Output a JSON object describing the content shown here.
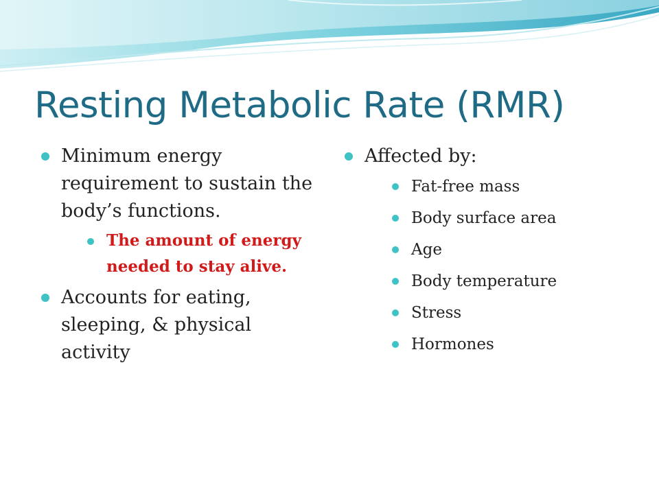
{
  "slide": {
    "title": "Resting Metabolic Rate (RMR)",
    "accent_color": "#3ec2c6",
    "title_color": "#1f6b86",
    "emphasis_color": "#d11a1a",
    "left": {
      "bullet1": "Minimum energy requirement to sustain the body’s functions.",
      "sub1": "The amount of energy needed to stay alive.",
      "bullet2": "Accounts for eating, sleeping, & physical activity"
    },
    "right": {
      "heading": "Affected by:",
      "items": [
        "Fat-free mass",
        "Body surface area",
        "Age",
        "Body temperature",
        "Stress",
        "Hormones"
      ]
    }
  }
}
